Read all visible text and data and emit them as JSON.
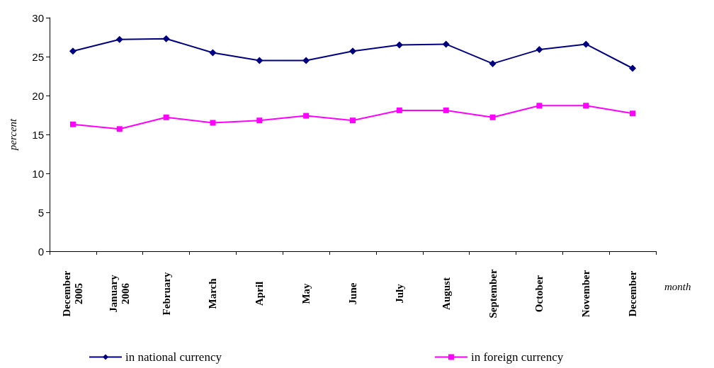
{
  "chart_data": {
    "type": "line",
    "xlabel": "month",
    "ylabel": "percent",
    "categories": [
      "December 2005",
      "January 2006",
      "February",
      "March",
      "April",
      "May",
      "June",
      "July",
      "August",
      "September",
      "October",
      "November",
      "December"
    ],
    "series": [
      {
        "name": "in national currency",
        "color": "#000080",
        "marker": "diamond",
        "values": [
          25.7,
          27.2,
          27.3,
          25.5,
          24.5,
          24.5,
          25.7,
          26.5,
          26.6,
          24.1,
          25.9,
          26.6,
          23.5
        ]
      },
      {
        "name": "in foreign currency",
        "color": "#ff00ff",
        "marker": "square",
        "values": [
          16.3,
          15.7,
          17.2,
          16.5,
          16.8,
          17.4,
          16.8,
          18.1,
          18.1,
          17.2,
          18.7,
          18.7,
          17.7
        ]
      }
    ],
    "ylim": [
      0,
      30
    ],
    "yticks": [
      0,
      5,
      10,
      15,
      20,
      25,
      30
    ],
    "grid": false,
    "legend": "bottom",
    "line_style": "solid"
  }
}
